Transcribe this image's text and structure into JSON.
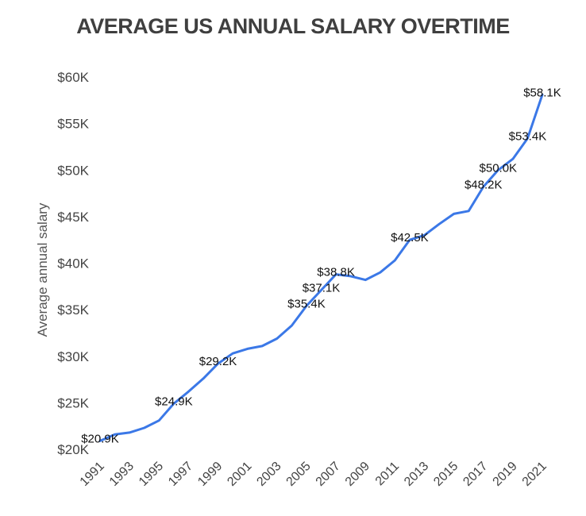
{
  "chart_data": {
    "type": "line",
    "title": "AVERAGE US ANNUAL SALARY OVERTIME",
    "xlabel": "",
    "ylabel": "Average annual salary",
    "x": [
      1991,
      1992,
      1993,
      1994,
      1995,
      1996,
      1997,
      1998,
      1999,
      2000,
      2001,
      2002,
      2003,
      2004,
      2005,
      2006,
      2007,
      2008,
      2009,
      2010,
      2011,
      2012,
      2013,
      2014,
      2015,
      2016,
      2017,
      2018,
      2019,
      2020,
      2021
    ],
    "x_tick_labels": [
      "1991",
      "1993",
      "1995",
      "1997",
      "1999",
      "2001",
      "2003",
      "2005",
      "2007",
      "2009",
      "2011",
      "2013",
      "2015",
      "2017",
      "2019",
      "2021"
    ],
    "ylim": [
      20,
      60
    ],
    "y_unit": "thousand USD",
    "y_ticks": [
      20,
      25,
      30,
      35,
      40,
      45,
      50,
      55,
      60
    ],
    "y_tick_labels": [
      "$20K",
      "$25K",
      "$30K",
      "$35K",
      "$40K",
      "$45K",
      "$50K",
      "$55K",
      "$60K"
    ],
    "grid": false,
    "legend": "none",
    "series": [
      {
        "name": "Average annual salary",
        "color": "#3b78e7",
        "values": [
          20.9,
          21.6,
          21.8,
          22.3,
          23.1,
          24.9,
          26.2,
          27.6,
          29.2,
          30.3,
          30.8,
          31.1,
          31.9,
          33.3,
          35.4,
          37.1,
          38.8,
          38.6,
          38.2,
          39.0,
          40.3,
          42.5,
          43.0,
          44.2,
          45.3,
          45.6,
          48.2,
          50.0,
          51.2,
          53.4,
          58.1
        ]
      }
    ],
    "data_labels": [
      {
        "x": 1991,
        "value": 20.9,
        "text": "$20.9K"
      },
      {
        "x": 1996,
        "value": 24.9,
        "text": "$24.9K"
      },
      {
        "x": 1999,
        "value": 29.2,
        "text": "$29.2K"
      },
      {
        "x": 2005,
        "value": 35.4,
        "text": "$35.4K"
      },
      {
        "x": 2006,
        "value": 37.1,
        "text": "$37.1K"
      },
      {
        "x": 2007,
        "value": 38.8,
        "text": "$38.8K"
      },
      {
        "x": 2012,
        "value": 42.5,
        "text": "$42.5K"
      },
      {
        "x": 2017,
        "value": 48.2,
        "text": "$48.2K"
      },
      {
        "x": 2018,
        "value": 50.0,
        "text": "$50.0K"
      },
      {
        "x": 2020,
        "value": 53.4,
        "text": "$53.4K"
      },
      {
        "x": 2021,
        "value": 58.1,
        "text": "$58.1K"
      }
    ]
  }
}
